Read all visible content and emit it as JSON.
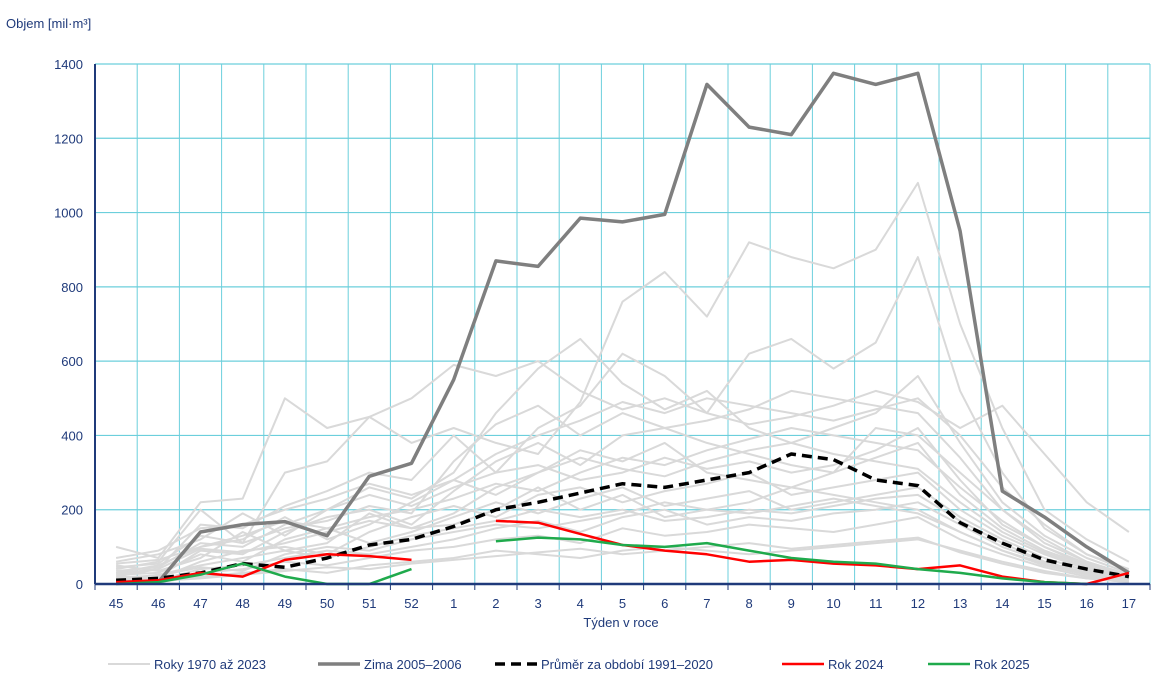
{
  "chart_data": {
    "type": "line",
    "ylabel": "Objem [mil·m³]",
    "xlabel": "Týden v roce",
    "ylim": [
      0,
      1400
    ],
    "yticks": [
      0,
      200,
      400,
      600,
      800,
      1000,
      1200,
      1400
    ],
    "categories": [
      "45",
      "46",
      "47",
      "48",
      "49",
      "50",
      "51",
      "52",
      "1",
      "2",
      "3",
      "4",
      "5",
      "6",
      "7",
      "8",
      "9",
      "10",
      "11",
      "12",
      "13",
      "14",
      "15",
      "16",
      "17"
    ],
    "grid": "horizontal and vertical",
    "legend_position": "bottom",
    "colors": {
      "grid": "#6ccfdc",
      "axis": "#1f3a7a",
      "text": "#1f3a7a",
      "history": "#d9d9d9",
      "zima": "#7f7f7f",
      "prumer": "#000000",
      "rok2024": "#ff0000",
      "rok2025": "#1faa4c"
    },
    "legend": [
      {
        "key": "history",
        "label": "Roky 1970 až 2023"
      },
      {
        "key": "zima",
        "label": "Zima 2005–2006"
      },
      {
        "key": "prumer",
        "label": "Průměr za období 1991–2020"
      },
      {
        "key": "rok2024",
        "label": "Rok 2024"
      },
      {
        "key": "rok2025",
        "label": "Rok 2025"
      }
    ],
    "series": [
      {
        "key": "zima",
        "name": "Zima 2005–2006",
        "dashed": false,
        "values": [
          5,
          5,
          140,
          160,
          168,
          130,
          290,
          325,
          550,
          870,
          855,
          985,
          975,
          995,
          1345,
          1230,
          1210,
          1375,
          1345,
          1375,
          950,
          250,
          180,
          100,
          30
        ]
      },
      {
        "key": "prumer",
        "name": "Průměr za období 1991–2020",
        "dashed": true,
        "values": [
          10,
          15,
          30,
          55,
          45,
          70,
          105,
          120,
          155,
          200,
          220,
          245,
          270,
          260,
          280,
          300,
          350,
          335,
          280,
          265,
          165,
          110,
          65,
          40,
          20
        ]
      },
      {
        "key": "rok2024",
        "name": "Rok 2024",
        "dashed": false,
        "values": [
          5,
          10,
          30,
          20,
          65,
          80,
          75,
          65,
          null,
          170,
          165,
          135,
          105,
          90,
          80,
          60,
          65,
          55,
          50,
          40,
          50,
          20,
          5,
          0,
          30
        ]
      },
      {
        "key": "rok2025",
        "name": "Rok 2025",
        "dashed": false,
        "values": [
          0,
          5,
          25,
          55,
          20,
          0,
          0,
          40,
          null,
          115,
          125,
          120,
          105,
          100,
          110,
          90,
          70,
          60,
          55,
          40,
          30,
          15,
          5,
          0,
          null
        ]
      }
    ],
    "history_lines": [
      [
        100,
        70,
        220,
        230,
        500,
        420,
        450,
        500,
        590,
        560,
        600,
        520,
        470,
        500,
        460,
        430,
        450,
        480,
        520,
        490,
        420,
        480,
        350,
        220,
        140
      ],
      [
        40,
        60,
        200,
        110,
        300,
        330,
        450,
        380,
        420,
        380,
        350,
        490,
        760,
        840,
        720,
        920,
        880,
        850,
        900,
        1080,
        700,
        420,
        200,
        120,
        60
      ],
      [
        20,
        40,
        160,
        150,
        210,
        250,
        300,
        280,
        400,
        300,
        420,
        480,
        620,
        560,
        460,
        620,
        660,
        580,
        650,
        880,
        520,
        300,
        150,
        80,
        40
      ],
      [
        60,
        80,
        120,
        190,
        130,
        200,
        260,
        230,
        300,
        460,
        580,
        660,
        540,
        470,
        520,
        420,
        380,
        420,
        460,
        560,
        380,
        220,
        130,
        70,
        30
      ],
      [
        15,
        20,
        90,
        80,
        140,
        180,
        200,
        160,
        250,
        330,
        380,
        320,
        400,
        420,
        380,
        350,
        320,
        300,
        340,
        380,
        240,
        150,
        90,
        50,
        20
      ],
      [
        30,
        50,
        100,
        120,
        180,
        120,
        160,
        220,
        280,
        240,
        300,
        360,
        330,
        380,
        300,
        280,
        260,
        300,
        420,
        400,
        300,
        200,
        110,
        60,
        25
      ],
      [
        10,
        15,
        60,
        90,
        100,
        80,
        140,
        180,
        210,
        180,
        240,
        260,
        220,
        250,
        270,
        300,
        240,
        260,
        280,
        300,
        200,
        130,
        80,
        40,
        15
      ],
      [
        25,
        30,
        80,
        60,
        120,
        150,
        110,
        140,
        180,
        220,
        190,
        230,
        260,
        210,
        230,
        250,
        200,
        220,
        240,
        260,
        180,
        120,
        70,
        35,
        10
      ],
      [
        5,
        10,
        40,
        50,
        70,
        90,
        80,
        100,
        120,
        150,
        170,
        140,
        180,
        200,
        160,
        180,
        170,
        190,
        200,
        220,
        160,
        100,
        60,
        30,
        10
      ],
      [
        50,
        35,
        70,
        140,
        90,
        110,
        190,
        150,
        160,
        200,
        260,
        200,
        240,
        180,
        200,
        220,
        260,
        240,
        220,
        200,
        140,
        90,
        55,
        25,
        10
      ],
      [
        8,
        12,
        30,
        40,
        60,
        50,
        70,
        90,
        100,
        120,
        130,
        110,
        150,
        130,
        140,
        160,
        150,
        140,
        160,
        180,
        120,
        80,
        45,
        20,
        8
      ],
      [
        35,
        45,
        110,
        100,
        160,
        200,
        240,
        210,
        260,
        300,
        320,
        280,
        300,
        340,
        310,
        330,
        300,
        320,
        360,
        420,
        280,
        160,
        100,
        55,
        20
      ],
      [
        12,
        25,
        50,
        70,
        90,
        70,
        100,
        130,
        150,
        170,
        200,
        180,
        200,
        170,
        180,
        200,
        190,
        210,
        230,
        240,
        170,
        110,
        60,
        30,
        12
      ],
      [
        0,
        5,
        20,
        30,
        40,
        30,
        50,
        60,
        70,
        90,
        80,
        70,
        90,
        100,
        90,
        80,
        90,
        100,
        110,
        120,
        90,
        60,
        35,
        15,
        5
      ],
      [
        45,
        55,
        130,
        110,
        150,
        170,
        210,
        190,
        330,
        430,
        480,
        400,
        460,
        420,
        440,
        470,
        520,
        500,
        480,
        460,
        340,
        200,
        120,
        60,
        25
      ],
      [
        18,
        22,
        45,
        35,
        80,
        100,
        90,
        120,
        140,
        160,
        150,
        170,
        190,
        220,
        200,
        190,
        210,
        230,
        210,
        190,
        140,
        90,
        50,
        25,
        10
      ],
      [
        70,
        90,
        150,
        160,
        200,
        230,
        270,
        240,
        280,
        350,
        400,
        440,
        490,
        460,
        500,
        480,
        460,
        440,
        470,
        500,
        400,
        260,
        160,
        80,
        35
      ],
      [
        3,
        8,
        15,
        25,
        35,
        45,
        40,
        55,
        65,
        75,
        85,
        95,
        80,
        90,
        100,
        110,
        95,
        105,
        115,
        125,
        85,
        55,
        30,
        15,
        5
      ],
      [
        28,
        40,
        95,
        85,
        110,
        140,
        170,
        150,
        190,
        260,
        300,
        340,
        310,
        290,
        330,
        360,
        380,
        350,
        330,
        310,
        220,
        140,
        85,
        45,
        18
      ],
      [
        55,
        65,
        100,
        130,
        170,
        150,
        180,
        200,
        230,
        270,
        250,
        300,
        340,
        320,
        360,
        390,
        420,
        400,
        380,
        360,
        260,
        170,
        100,
        50,
        20
      ]
    ]
  }
}
